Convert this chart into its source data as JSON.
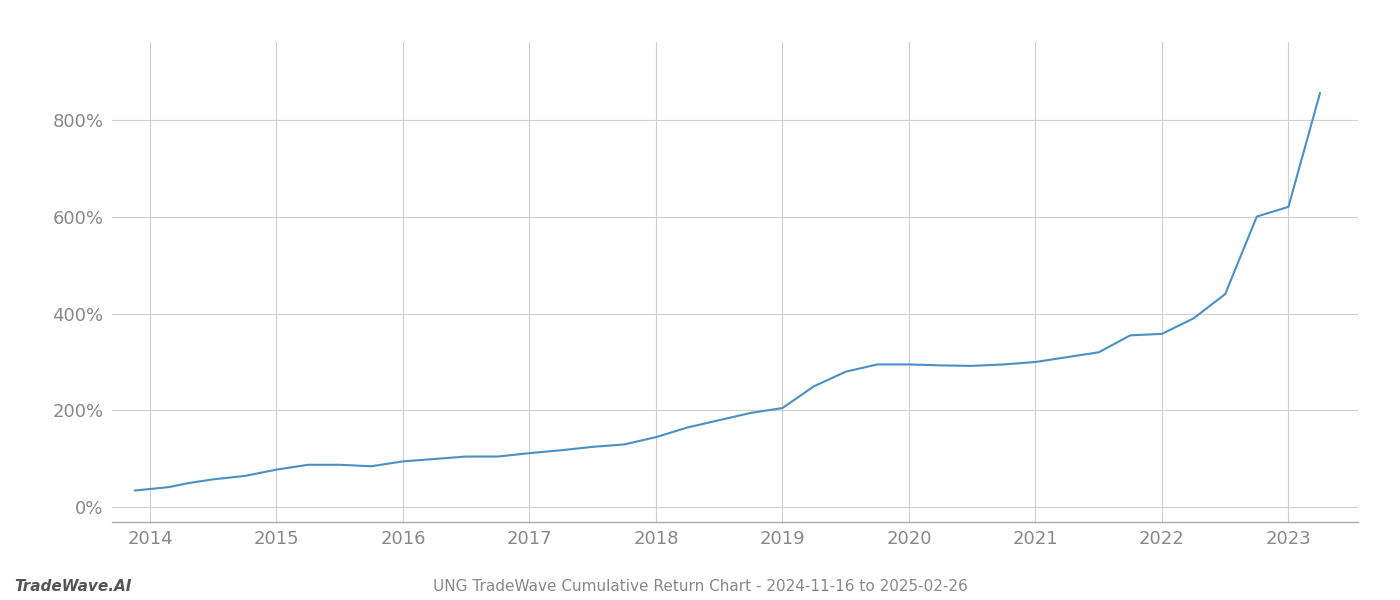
{
  "title": "UNG TradeWave Cumulative Return Chart - 2024-11-16 to 2025-02-26",
  "watermark": "TradeWave.AI",
  "line_color": "#4a90c4",
  "background_color": "#ffffff",
  "grid_color": "#d0d0d0",
  "x_years": [
    2014,
    2015,
    2016,
    2017,
    2018,
    2019,
    2020,
    2021,
    2022,
    2023
  ],
  "y_ticks": [
    0,
    200,
    400,
    600,
    800
  ],
  "xlim": [
    2013.7,
    2023.55
  ],
  "ylim": [
    -30,
    960
  ],
  "data_x": [
    2013.88,
    2014.0,
    2014.15,
    2014.3,
    2014.5,
    2014.75,
    2015.0,
    2015.25,
    2015.5,
    2015.75,
    2016.0,
    2016.25,
    2016.5,
    2016.75,
    2017.0,
    2017.25,
    2017.5,
    2017.75,
    2018.0,
    2018.25,
    2018.5,
    2018.75,
    2019.0,
    2019.25,
    2019.5,
    2019.75,
    2020.0,
    2020.25,
    2020.5,
    2020.75,
    2021.0,
    2021.25,
    2021.5,
    2021.75,
    2022.0,
    2022.25,
    2022.5,
    2022.75,
    2023.0,
    2023.25
  ],
  "data_y": [
    35,
    38,
    42,
    50,
    58,
    65,
    78,
    88,
    88,
    85,
    95,
    100,
    105,
    105,
    112,
    118,
    125,
    130,
    145,
    165,
    180,
    195,
    205,
    250,
    280,
    295,
    295,
    293,
    292,
    295,
    300,
    310,
    320,
    355,
    358,
    390,
    440,
    600,
    620,
    855
  ]
}
